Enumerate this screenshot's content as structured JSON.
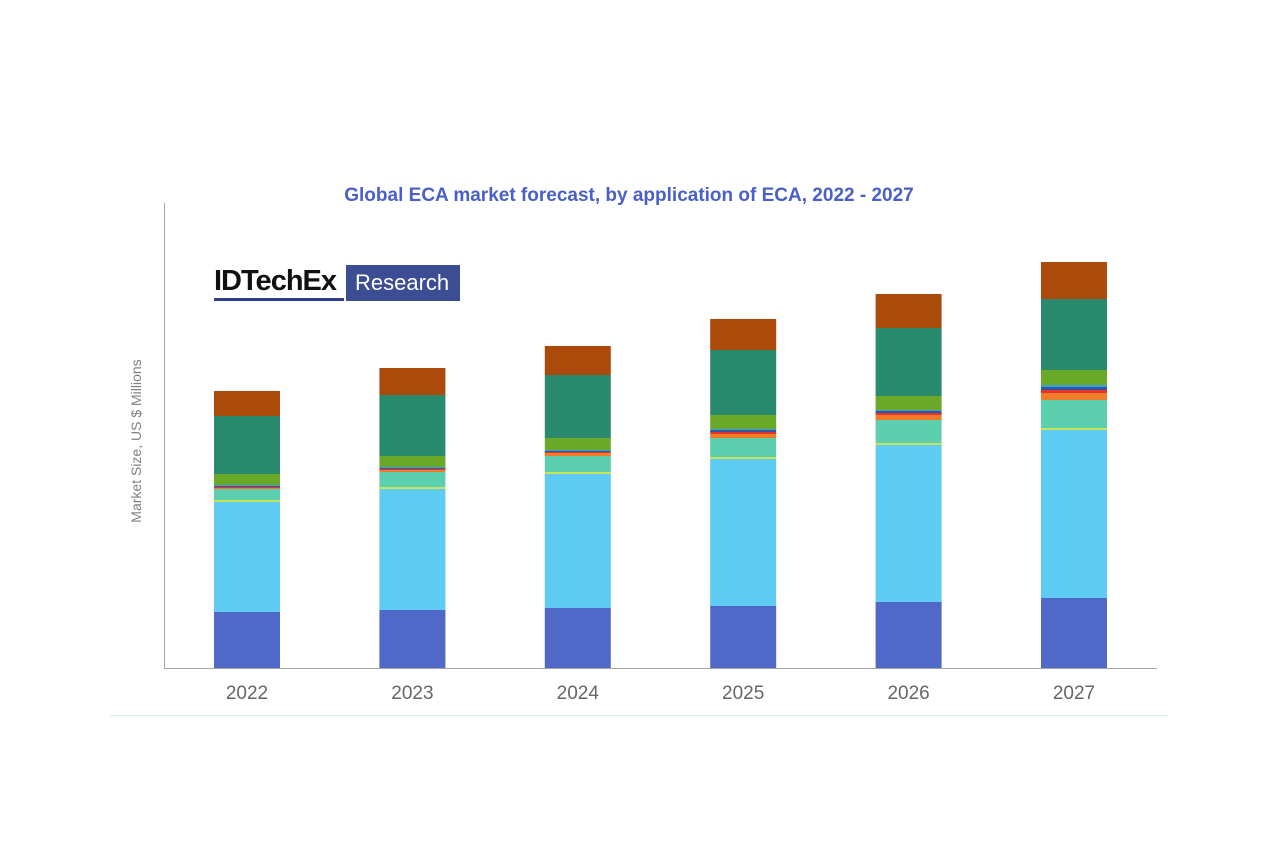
{
  "chart_data": {
    "type": "bar",
    "stacked": true,
    "title": "Global ECA market forecast, by application of ECA, 2022 - 2027",
    "xlabel": "",
    "ylabel": "Market Size, US $ Millions",
    "categories": [
      "2022",
      "2023",
      "2024",
      "2025",
      "2026",
      "2027"
    ],
    "ylim": [
      0,
      465
    ],
    "grid": false,
    "legend": "none",
    "series": [
      {
        "color": "#5068c8",
        "values": [
          56,
          58,
          60,
          62,
          66,
          70
        ]
      },
      {
        "color": "#5ecbf2",
        "values": [
          110,
          121,
          134,
          147,
          157,
          168
        ]
      },
      {
        "color": "#c8e35a",
        "values": [
          2,
          2,
          2,
          2,
          2,
          2
        ]
      },
      {
        "color": "#5ccfae",
        "values": [
          11,
          15,
          16,
          19,
          23,
          28
        ]
      },
      {
        "color": "#f07c2a",
        "values": [
          1,
          2,
          3,
          4,
          5,
          7
        ]
      },
      {
        "color": "#e8332a",
        "values": [
          1,
          1,
          1,
          2,
          2,
          3
        ]
      },
      {
        "color": "#2d56a8",
        "values": [
          1,
          1,
          1,
          2,
          2,
          3
        ]
      },
      {
        "color": "#3e9fd0",
        "values": [
          1,
          1,
          1,
          1,
          1,
          2
        ]
      },
      {
        "color": "#6aa828",
        "values": [
          11,
          11,
          12,
          14,
          14,
          15
        ]
      },
      {
        "color": "#2a8a6e",
        "values": [
          58,
          61,
          63,
          65,
          68,
          71
        ]
      },
      {
        "color": "#ab4a0a",
        "values": [
          25,
          27,
          29,
          31,
          34,
          37
        ]
      }
    ]
  },
  "logo": {
    "brand": "IDTechEx",
    "suffix": "Research"
  },
  "colors": {
    "title": "#4a5fc8",
    "axis": "#a6a6a6",
    "tick_text": "#666666"
  }
}
